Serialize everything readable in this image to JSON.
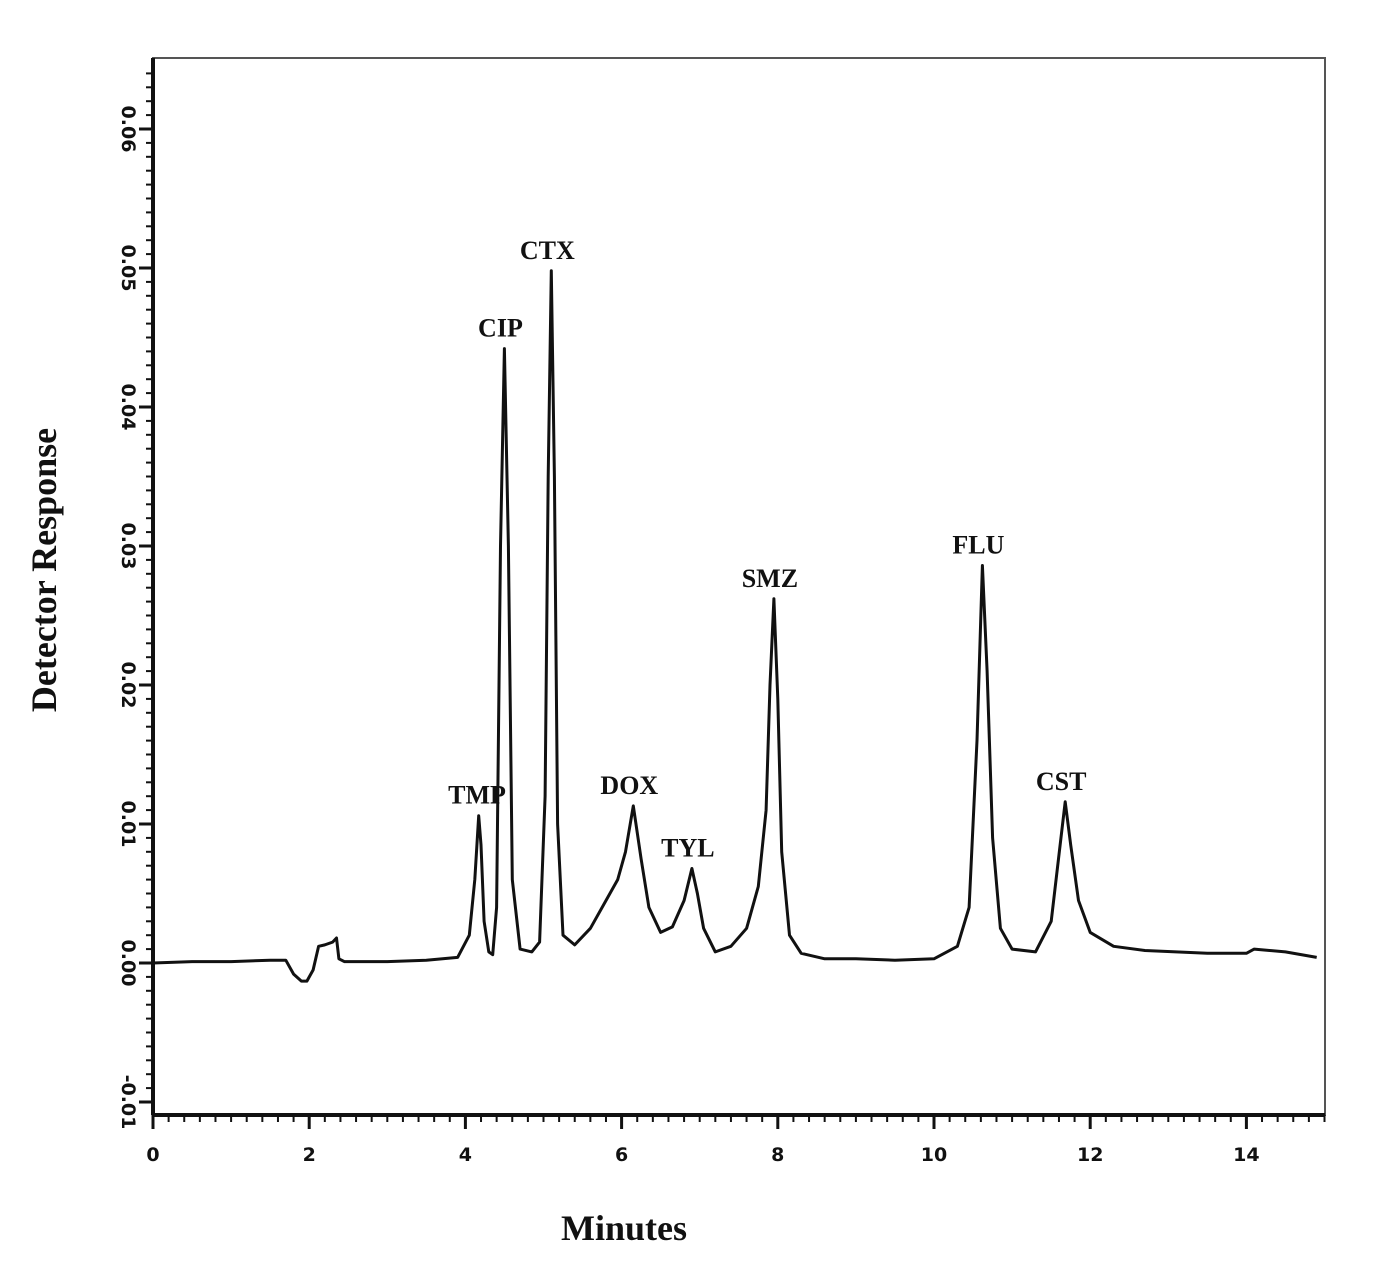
{
  "chart_data": {
    "type": "line",
    "title": "",
    "xlabel": "Minutes",
    "ylabel": "Detector Response",
    "xlim": [
      0,
      15
    ],
    "ylim": [
      -0.011,
      0.066
    ],
    "x_ticks": [
      0,
      2,
      4,
      6,
      8,
      10,
      12,
      14
    ],
    "y_ticks": [
      -0.01,
      0.0,
      0.01,
      0.02,
      0.03,
      0.04,
      0.05,
      0.06
    ],
    "y_tick_labels": [
      "-0.01",
      "0.00",
      "0.01",
      "0.02",
      "0.03",
      "0.04",
      "0.05",
      "0.06"
    ],
    "grid": false,
    "legend": "none",
    "line_color": "#111111",
    "peaks": [
      {
        "name": "TMP",
        "x": 4.2,
        "y": 0.0106
      },
      {
        "name": "CIP",
        "x": 4.5,
        "y": 0.0442
      },
      {
        "name": "CTX",
        "x": 5.1,
        "y": 0.0498
      },
      {
        "name": "DOX",
        "x": 6.15,
        "y": 0.0113
      },
      {
        "name": "TYL",
        "x": 6.9,
        "y": 0.0068
      },
      {
        "name": "SMZ",
        "x": 7.95,
        "y": 0.0262
      },
      {
        "name": "FLU",
        "x": 10.62,
        "y": 0.0286
      },
      {
        "name": "CST",
        "x": 11.68,
        "y": 0.0116
      }
    ],
    "series": [
      {
        "x": [
          0.0,
          0.5,
          1.0,
          1.5,
          1.7,
          1.8,
          1.9,
          1.97,
          2.05,
          2.12,
          2.2,
          2.3,
          2.35,
          2.38,
          2.45,
          3.0,
          3.5,
          3.9,
          4.05,
          4.12,
          4.17,
          4.2,
          4.24,
          4.3,
          4.35,
          4.4,
          4.45,
          4.5,
          4.55,
          4.6,
          4.7,
          4.85,
          4.95,
          5.02,
          5.06,
          5.1,
          5.14,
          5.18,
          5.25,
          5.4,
          5.6,
          5.8,
          5.95,
          6.05,
          6.15,
          6.25,
          6.35,
          6.5,
          6.65,
          6.8,
          6.9,
          6.97,
          7.05,
          7.2,
          7.4,
          7.6,
          7.75,
          7.85,
          7.9,
          7.95,
          8.0,
          8.05,
          8.15,
          8.3,
          8.6,
          9.0,
          9.5,
          10.0,
          10.3,
          10.45,
          10.55,
          10.62,
          10.68,
          10.75,
          10.85,
          11.0,
          11.3,
          11.5,
          11.6,
          11.68,
          11.75,
          11.85,
          12.0,
          12.3,
          12.7,
          13.5,
          14.0,
          14.1,
          14.5,
          14.9
        ],
        "y": [
          0.0,
          0.0001,
          0.0001,
          0.0002,
          0.0002,
          -0.0008,
          -0.0013,
          -0.0013,
          -0.0005,
          0.0012,
          0.0013,
          0.0015,
          0.0018,
          0.0003,
          0.0001,
          0.0001,
          0.0002,
          0.0004,
          0.002,
          0.006,
          0.0106,
          0.0085,
          0.003,
          0.0008,
          0.0006,
          0.004,
          0.03,
          0.0442,
          0.03,
          0.006,
          0.001,
          0.0008,
          0.0015,
          0.012,
          0.035,
          0.0498,
          0.035,
          0.01,
          0.002,
          0.0013,
          0.0025,
          0.0045,
          0.006,
          0.008,
          0.0113,
          0.0075,
          0.004,
          0.0022,
          0.0026,
          0.0045,
          0.0068,
          0.005,
          0.0025,
          0.0008,
          0.0012,
          0.0025,
          0.0055,
          0.011,
          0.02,
          0.0262,
          0.019,
          0.008,
          0.002,
          0.0007,
          0.0003,
          0.0003,
          0.0002,
          0.0003,
          0.0012,
          0.004,
          0.016,
          0.0286,
          0.021,
          0.009,
          0.0025,
          0.001,
          0.0008,
          0.003,
          0.0078,
          0.0116,
          0.0085,
          0.0045,
          0.0022,
          0.0012,
          0.0009,
          0.0007,
          0.0007,
          0.001,
          0.0008,
          0.0004
        ]
      }
    ]
  }
}
